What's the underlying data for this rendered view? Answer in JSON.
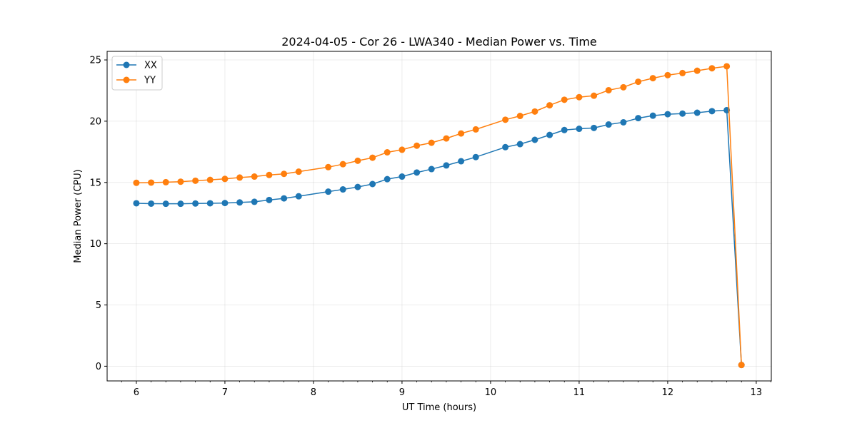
{
  "chart_data": {
    "type": "line",
    "title": "2024-04-05 - Cor 26 - LWA340 - Median Power vs. Time",
    "xlabel": "UT Time (hours)",
    "ylabel": "Median Power (CPU)",
    "xlim": [
      5.67,
      13.17
    ],
    "ylim": [
      -1.2,
      25.7
    ],
    "xticks": [
      6,
      7,
      8,
      9,
      10,
      11,
      12,
      13
    ],
    "yticks": [
      0,
      5,
      10,
      15,
      20,
      25
    ],
    "grid": true,
    "legend_position": "top-left",
    "series": [
      {
        "name": "XX",
        "color": "#1f77b4",
        "x": [
          6.0,
          6.167,
          6.333,
          6.5,
          6.667,
          6.833,
          7.0,
          7.167,
          7.333,
          7.5,
          7.667,
          7.833,
          8.167,
          8.333,
          8.5,
          8.667,
          8.833,
          9.0,
          9.167,
          9.333,
          9.5,
          9.667,
          9.833,
          10.167,
          10.333,
          10.5,
          10.667,
          10.833,
          11.0,
          11.167,
          11.333,
          11.5,
          11.667,
          11.833,
          12.0,
          12.167,
          12.333,
          12.5,
          12.667,
          12.833
        ],
        "y": [
          13.3,
          13.27,
          13.26,
          13.26,
          13.28,
          13.3,
          13.32,
          13.37,
          13.42,
          13.57,
          13.7,
          13.87,
          14.25,
          14.43,
          14.63,
          14.87,
          15.27,
          15.48,
          15.81,
          16.09,
          16.39,
          16.73,
          17.07,
          17.88,
          18.13,
          18.48,
          18.88,
          19.28,
          19.38,
          19.45,
          19.73,
          19.91,
          20.25,
          20.45,
          20.57,
          20.62,
          20.69,
          20.82,
          20.9,
          0.1
        ]
      },
      {
        "name": "YY",
        "color": "#ff7f0e",
        "x": [
          6.0,
          6.167,
          6.333,
          6.5,
          6.667,
          6.833,
          7.0,
          7.167,
          7.333,
          7.5,
          7.667,
          7.833,
          8.167,
          8.333,
          8.5,
          8.667,
          8.833,
          9.0,
          9.167,
          9.333,
          9.5,
          9.667,
          9.833,
          10.167,
          10.333,
          10.5,
          10.667,
          10.833,
          11.0,
          11.167,
          11.333,
          11.5,
          11.667,
          11.833,
          12.0,
          12.167,
          12.333,
          12.5,
          12.667,
          12.833
        ],
        "y": [
          14.97,
          14.99,
          15.02,
          15.06,
          15.14,
          15.21,
          15.29,
          15.4,
          15.48,
          15.61,
          15.7,
          15.88,
          16.25,
          16.49,
          16.77,
          17.02,
          17.46,
          17.67,
          18.0,
          18.24,
          18.59,
          19.0,
          19.33,
          20.12,
          20.43,
          20.79,
          21.3,
          21.75,
          21.96,
          22.08,
          22.53,
          22.77,
          23.22,
          23.51,
          23.76,
          23.93,
          24.12,
          24.32,
          24.48,
          0.1
        ]
      }
    ]
  }
}
